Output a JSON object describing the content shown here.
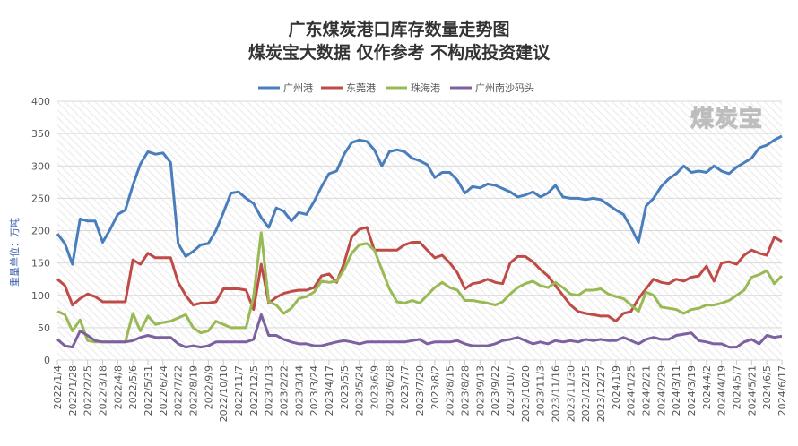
{
  "title": "广东煤炭港口库存数量走势图",
  "subtitle": "煤炭宝大数据 仅作参考 不构成投资建议",
  "watermark": "煤炭宝",
  "chart_data": {
    "type": "line",
    "title": "广东煤炭港口库存数量走势图",
    "subtitle": "煤炭宝大数据 仅作参考 不构成投资建议",
    "ylabel": "重量单位：万吨",
    "xlabel": "",
    "ylim": [
      0,
      400
    ],
    "yticks": [
      0,
      50,
      100,
      150,
      200,
      250,
      300,
      350,
      400
    ],
    "grid": true,
    "legend": "top",
    "x_labels": [
      "2022/1/4",
      "2022/1/28",
      "2022/2/25",
      "2022/3/18",
      "2022/4/8",
      "2022/5/6",
      "2022/5/31",
      "2022/6/24",
      "2022/7/22",
      "2022/8/19",
      "2022/9/9",
      "2022/10/10",
      "2022/11/7",
      "2022/12/5",
      "2023/1/13",
      "2023/2/22",
      "2023/3/14",
      "2023/3/24",
      "2023/4/17",
      "2023/5/5",
      "2023/5/24",
      "2023/6/9",
      "2023/6/28",
      "2023/7/7",
      "2023/7/20",
      "2023/8/2",
      "2023/8/15",
      "2023/8/28",
      "2023/9/13",
      "2023/9/22",
      "2023/10/7",
      "2023/10/20",
      "2023/11/3",
      "2023/11/16",
      "2023/11/30",
      "2023/12/15",
      "2023/12/27",
      "2024/1/9",
      "2024/1/25",
      "2024/2/21",
      "2024/2/29",
      "2024/3/11",
      "2024/3/19",
      "2024/4/2",
      "2024/4/19",
      "2024/5/7",
      "2024/5/21",
      "2024/6/5",
      "2024/6/17"
    ],
    "series": [
      {
        "name": "广州港",
        "color": "#4a7ebb",
        "values": [
          195,
          180,
          148,
          218,
          215,
          215,
          182,
          202,
          225,
          232,
          270,
          303,
          322,
          318,
          320,
          305,
          180,
          160,
          168,
          178,
          180,
          200,
          228,
          258,
          260,
          250,
          242,
          220,
          205,
          235,
          230,
          215,
          228,
          225,
          245,
          268,
          288,
          292,
          318,
          336,
          340,
          338,
          325,
          300,
          322,
          325,
          322,
          312,
          308,
          302,
          282,
          290,
          290,
          278,
          258,
          268,
          266,
          272,
          270,
          265,
          260,
          252,
          255,
          260,
          252,
          258,
          270,
          252,
          250,
          250,
          248,
          250,
          248,
          240,
          232,
          225,
          205,
          182,
          238,
          250,
          268,
          280,
          288,
          300,
          290,
          292,
          290,
          300,
          292,
          288,
          298,
          305,
          312,
          328,
          332,
          340,
          346
        ]
      },
      {
        "name": "东莞港",
        "color": "#be4b48",
        "values": [
          125,
          115,
          85,
          95,
          102,
          98,
          90,
          90,
          90,
          90,
          155,
          148,
          165,
          158,
          158,
          158,
          120,
          100,
          85,
          88,
          88,
          90,
          110,
          110,
          110,
          108,
          78,
          148,
          88,
          97,
          103,
          106,
          108,
          108,
          112,
          130,
          133,
          120,
          150,
          190,
          202,
          205,
          170,
          170,
          170,
          170,
          178,
          182,
          182,
          170,
          158,
          162,
          150,
          135,
          110,
          118,
          120,
          125,
          120,
          118,
          150,
          160,
          160,
          152,
          140,
          130,
          115,
          100,
          85,
          75,
          72,
          70,
          68,
          68,
          60,
          72,
          75,
          95,
          110,
          125,
          120,
          118,
          125,
          122,
          128,
          130,
          145,
          122,
          150,
          152,
          148,
          162,
          170,
          165,
          162,
          190,
          183
        ]
      },
      {
        "name": "珠海港",
        "color": "#98b954",
        "values": [
          75,
          70,
          45,
          62,
          30,
          28,
          28,
          28,
          28,
          28,
          72,
          45,
          68,
          55,
          58,
          60,
          65,
          70,
          50,
          42,
          45,
          60,
          55,
          50,
          50,
          50,
          98,
          197,
          90,
          85,
          72,
          80,
          95,
          98,
          105,
          122,
          120,
          122,
          140,
          165,
          178,
          180,
          170,
          140,
          110,
          90,
          88,
          92,
          88,
          100,
          112,
          120,
          112,
          108,
          92,
          92,
          90,
          88,
          85,
          90,
          102,
          112,
          118,
          122,
          115,
          112,
          120,
          112,
          102,
          100,
          108,
          108,
          110,
          102,
          98,
          95,
          85,
          75,
          105,
          100,
          82,
          80,
          78,
          72,
          78,
          80,
          85,
          85,
          88,
          92,
          100,
          108,
          128,
          132,
          138,
          118,
          130
        ]
      },
      {
        "name": "广州南沙码头",
        "color": "#7d60a0",
        "values": [
          32,
          22,
          20,
          45,
          38,
          30,
          28,
          28,
          28,
          28,
          30,
          35,
          38,
          35,
          35,
          35,
          25,
          20,
          22,
          20,
          22,
          28,
          28,
          28,
          28,
          28,
          32,
          70,
          38,
          38,
          32,
          28,
          25,
          25,
          22,
          22,
          25,
          28,
          30,
          28,
          25,
          28,
          28,
          28,
          28,
          28,
          28,
          30,
          32,
          25,
          28,
          28,
          28,
          30,
          25,
          22,
          22,
          22,
          25,
          30,
          32,
          35,
          30,
          25,
          28,
          25,
          30,
          28,
          30,
          28,
          32,
          30,
          32,
          30,
          30,
          35,
          30,
          25,
          32,
          35,
          32,
          32,
          38,
          40,
          42,
          30,
          28,
          25,
          25,
          20,
          20,
          28,
          32,
          25,
          38,
          35,
          37
        ]
      }
    ]
  }
}
